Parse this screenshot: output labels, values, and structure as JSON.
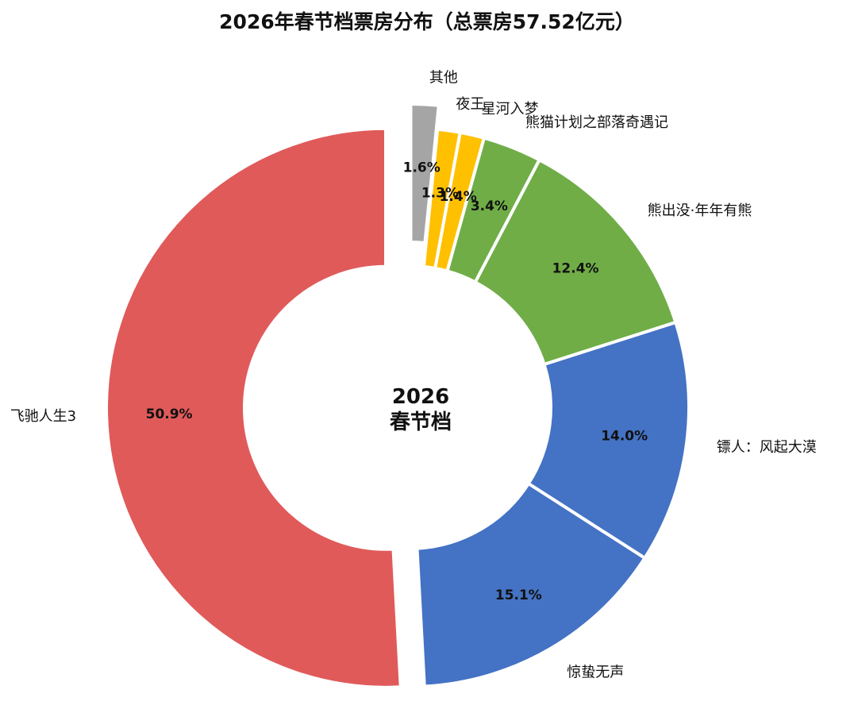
{
  "chart_data": {
    "type": "pie",
    "title": "2026年春节档票房分布（总票房57.52亿元）",
    "center_text": [
      "2026",
      "春节档"
    ],
    "slices": [
      {
        "label": "飞驰人生3",
        "value": 50.9,
        "pct_text": "50.9%",
        "color": "#e05a5a",
        "explode": true
      },
      {
        "label": "惊蛰无声",
        "value": 15.1,
        "pct_text": "15.1%",
        "color": "#4472c4"
      },
      {
        "label": "镖人：风起大漠",
        "value": 14.0,
        "pct_text": "14.0%",
        "color": "#4472c4"
      },
      {
        "label": "熊出没·年年有熊",
        "value": 12.4,
        "pct_text": "12.4%",
        "color": "#70ad47"
      },
      {
        "label": "熊猫计划之部落奇遇记",
        "value": 3.4,
        "pct_text": "3.4%",
        "color": "#70ad47"
      },
      {
        "label": "星河入梦",
        "value": 1.4,
        "pct_text": "1.4%",
        "color": "#ffc000"
      },
      {
        "label": "夜王",
        "value": 1.3,
        "pct_text": "1.3%",
        "color": "#ffc000"
      },
      {
        "label": "其他",
        "value": 1.6,
        "pct_text": "1.6%",
        "color": "#a5a5a5",
        "explode": true
      }
    ]
  }
}
